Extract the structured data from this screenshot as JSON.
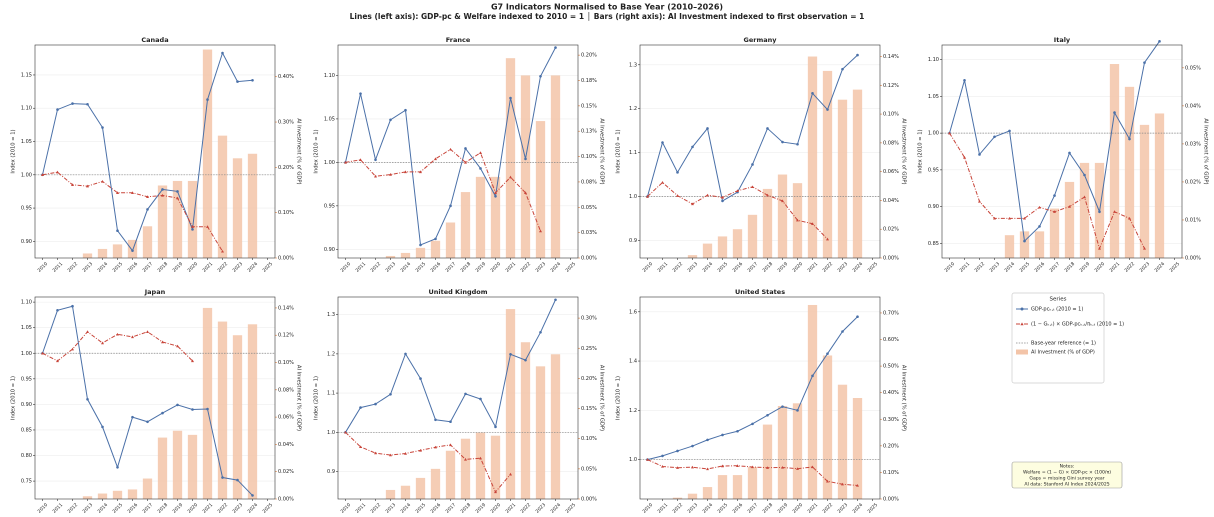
{
  "title": "G7 Indicators Normalised to Base Year (2010–2026)",
  "subtitle": "Lines (left axis): GDP-pc & Welfare indexed to 2010 = 1  │  Bars (right axis): AI Investment indexed to first observation = 1",
  "legend": {
    "title": "Series",
    "entries": [
      {
        "name": "GDP-pcₖ,ₜ (2010 = 1)",
        "color": "#4a70a8"
      },
      {
        "name": "(1 − Gₖ,ₜ) × GDP-pcₖ,ₜ/πₖ,ₜ (2010 = 1)",
        "color": "#c8453a"
      },
      {
        "name": "Base-year reference (= 1)",
        "color": "#888888"
      },
      {
        "name": "AI Investment (% of GDP)",
        "color": "#f3c4a8"
      }
    ]
  },
  "notes": [
    "Notes:",
    "Welfare = (1 − G) × GDP-pc × (100/π)",
    "Gaps = missing Gini survey year",
    "AI data: Stanford AI Index 2024/2025"
  ],
  "chart_data": [
    {
      "type": "combo",
      "title": "Canada",
      "ylabel": "Index (2010 = 1)",
      "y2label": "AI Investment (% of GDP)",
      "reference": 1,
      "x": [
        2010,
        2011,
        2012,
        2013,
        2014,
        2015,
        2016,
        2017,
        2018,
        2019,
        2020,
        2021,
        2022,
        2023,
        2024
      ],
      "xlim": [
        2009.5,
        2025.5
      ],
      "xticks": [
        2010,
        2011,
        2012,
        2013,
        2014,
        2015,
        2016,
        2017,
        2018,
        2019,
        2020,
        2021,
        2022,
        2023,
        2024,
        2025
      ],
      "ylim": [
        0.875,
        1.195
      ],
      "yticks": [
        {
          "value": 0.9,
          "label": "0.90"
        },
        {
          "value": 0.95,
          "label": "0.95"
        },
        {
          "value": 1,
          "label": "1.00"
        },
        {
          "value": 1.05,
          "label": "1.05"
        },
        {
          "value": 1.1,
          "label": "1.10"
        },
        {
          "value": 1.15,
          "label": "1.15"
        }
      ],
      "y2lim": [
        0,
        0.47
      ],
      "y2ticks": [
        {
          "value": 0,
          "label": "0.00%"
        },
        {
          "value": 0.1,
          "label": "0.10%"
        },
        {
          "value": 0.2,
          "label": "0.20%"
        },
        {
          "value": 0.3,
          "label": "0.30%"
        },
        {
          "value": 0.4,
          "label": "0.40%"
        }
      ],
      "series": [
        {
          "values": [
            1.0,
            1.098,
            1.107,
            1.106,
            1.071,
            0.916,
            0.886,
            0.948,
            0.978,
            0.975,
            0.918,
            1.113,
            1.183,
            1.14,
            1.142
          ]
        },
        {
          "values": [
            1.0,
            1.004,
            0.985,
            0.983,
            0.99,
            0.973,
            0.973,
            0.967,
            0.969,
            0.965,
            0.922,
            0.922,
            0.885,
            null,
            null
          ]
        },
        {
          "axis": "y2",
          "values": [
            null,
            null,
            null,
            0.01,
            0.02,
            0.03,
            0.04,
            0.07,
            0.16,
            0.17,
            0.17,
            0.46,
            0.27,
            0.22,
            0.23
          ]
        }
      ]
    },
    {
      "type": "combo",
      "title": "France",
      "ylabel": "Index (2010 = 1)",
      "y2label": "AI Investment (% of GDP)",
      "reference": 1,
      "x": [
        2010,
        2011,
        2012,
        2013,
        2014,
        2015,
        2016,
        2017,
        2018,
        2019,
        2020,
        2021,
        2022,
        2023,
        2024
      ],
      "xlim": [
        2009.5,
        2025.5
      ],
      "xticks": [
        2010,
        2011,
        2012,
        2013,
        2014,
        2015,
        2016,
        2017,
        2018,
        2019,
        2020,
        2021,
        2022,
        2023,
        2024,
        2025
      ],
      "ylim": [
        0.89,
        1.135
      ],
      "yticks": [
        {
          "value": 0.9,
          "label": "0.90"
        },
        {
          "value": 0.95,
          "label": "0.95"
        },
        {
          "value": 1,
          "label": "1.00"
        },
        {
          "value": 1.05,
          "label": "1.05"
        },
        {
          "value": 1.1,
          "label": "1.10"
        }
      ],
      "y2lim": [
        0,
        0.21
      ],
      "y2ticks": [
        {
          "value": 0,
          "label": "0.00%"
        },
        {
          "value": 0.025,
          "label": "0.03%"
        },
        {
          "value": 0.05,
          "label": "0.05%"
        },
        {
          "value": 0.075,
          "label": "0.08%"
        },
        {
          "value": 0.1,
          "label": "0.10%"
        },
        {
          "value": 0.125,
          "label": "0.13%"
        },
        {
          "value": 0.15,
          "label": "0.15%"
        },
        {
          "value": 0.175,
          "label": "0.18%"
        },
        {
          "value": 0.2,
          "label": "0.20%"
        }
      ],
      "series": [
        {
          "values": [
            1.0,
            1.079,
            1.003,
            1.049,
            1.06,
            0.905,
            0.912,
            0.95,
            1.016,
            0.993,
            0.961,
            1.074,
            1.004,
            1.099,
            1.132
          ]
        },
        {
          "values": [
            1.0,
            1.003,
            0.984,
            0.986,
            0.989,
            0.989,
            1.004,
            1.015,
            1.0,
            1.011,
            0.965,
            0.983,
            0.965,
            0.921,
            null
          ]
        },
        {
          "axis": "y2",
          "values": [
            null,
            null,
            null,
            0.002,
            0.005,
            0.01,
            0.017,
            0.035,
            0.065,
            0.08,
            0.08,
            0.197,
            0.18,
            0.135,
            0.18
          ]
        }
      ]
    },
    {
      "type": "combo",
      "title": "Germany",
      "ylabel": "Index (2010 = 1)",
      "y2label": "AI Investment (% of GDP)",
      "reference": 1,
      "x": [
        2010,
        2011,
        2012,
        2013,
        2014,
        2015,
        2016,
        2017,
        2018,
        2019,
        2020,
        2021,
        2022,
        2023,
        2024
      ],
      "xlim": [
        2009.5,
        2025.5
      ],
      "xticks": [
        2010,
        2011,
        2012,
        2013,
        2014,
        2015,
        2016,
        2017,
        2018,
        2019,
        2020,
        2021,
        2022,
        2023,
        2024,
        2025
      ],
      "ylim": [
        0.86,
        1.345
      ],
      "yticks": [
        0.9,
        {
          "value": 1,
          "label": "1.0"
        },
        1.1,
        1.2,
        1.3
      ],
      "y2lim": [
        0,
        0.148
      ],
      "y2ticks": [
        {
          "value": 0,
          "label": "0.00%"
        },
        {
          "value": 0.02,
          "label": "0.02%"
        },
        {
          "value": 0.04,
          "label": "0.04%"
        },
        {
          "value": 0.06,
          "label": "0.06%"
        },
        {
          "value": 0.08,
          "label": "0.08%"
        },
        {
          "value": 0.1,
          "label": "0.10%"
        },
        {
          "value": 0.12,
          "label": "0.12%"
        },
        {
          "value": 0.14,
          "label": "0.14%"
        }
      ],
      "series": [
        {
          "values": [
            1.0,
            1.123,
            1.055,
            1.113,
            1.155,
            0.99,
            1.01,
            1.073,
            1.155,
            1.124,
            1.119,
            1.235,
            1.198,
            1.29,
            1.322
          ]
        },
        {
          "values": [
            1.0,
            1.032,
            1.002,
            0.983,
            1.003,
            0.998,
            1.013,
            1.022,
            1.003,
            0.99,
            0.946,
            0.938,
            0.903,
            null,
            null
          ]
        },
        {
          "axis": "y2",
          "values": [
            null,
            null,
            null,
            0.002,
            0.01,
            0.015,
            0.02,
            0.03,
            0.048,
            0.058,
            0.052,
            0.14,
            0.13,
            0.11,
            0.117
          ]
        }
      ]
    },
    {
      "type": "combo",
      "title": "Italy",
      "ylabel": "Index (2010 = 1)",
      "y2label": "AI Investment (% of GDP)",
      "reference": 1,
      "x": [
        2010,
        2011,
        2012,
        2013,
        2014,
        2015,
        2016,
        2017,
        2018,
        2019,
        2020,
        2021,
        2022,
        2023,
        2024
      ],
      "xlim": [
        2009.5,
        2025.5
      ],
      "xticks": [
        2010,
        2011,
        2012,
        2013,
        2014,
        2015,
        2016,
        2017,
        2018,
        2019,
        2020,
        2021,
        2022,
        2023,
        2024,
        2025
      ],
      "ylim": [
        0.83,
        1.12
      ],
      "yticks": [
        {
          "value": 0.85,
          "label": "0.85"
        },
        {
          "value": 0.9,
          "label": "0.90"
        },
        {
          "value": 0.95,
          "label": "0.95"
        },
        {
          "value": 1,
          "label": "1.00"
        },
        {
          "value": 1.05,
          "label": "1.05"
        },
        {
          "value": 1.1,
          "label": "1.10"
        }
      ],
      "y2lim": [
        0,
        0.056
      ],
      "y2ticks": [
        {
          "value": 0,
          "label": "0.00%"
        },
        {
          "value": 0.01,
          "label": "0.01%"
        },
        {
          "value": 0.02,
          "label": "0.02%"
        },
        {
          "value": 0.03,
          "label": "0.03%"
        },
        {
          "value": 0.04,
          "label": "0.04%"
        },
        {
          "value": 0.05,
          "label": "0.05%"
        }
      ],
      "series": [
        {
          "values": [
            1.0,
            1.072,
            0.971,
            0.995,
            1.003,
            0.853,
            0.873,
            0.915,
            0.973,
            0.943,
            0.893,
            1.028,
            0.992,
            1.096,
            1.125
          ]
        },
        {
          "values": [
            1.0,
            0.967,
            0.907,
            0.884,
            0.884,
            0.884,
            0.899,
            0.893,
            0.9,
            0.913,
            0.843,
            0.893,
            0.884,
            0.843,
            null
          ]
        },
        {
          "axis": "y2",
          "values": [
            null,
            null,
            null,
            null,
            0.006,
            0.007,
            0.007,
            0.013,
            0.02,
            0.025,
            0.025,
            0.051,
            0.045,
            0.035,
            0.038
          ]
        }
      ]
    },
    {
      "type": "combo",
      "title": "Japan",
      "ylabel": "Index (2010 = 1)",
      "y2label": "AI Investment (% of GDP)",
      "reference": 1,
      "x": [
        2010,
        2011,
        2012,
        2013,
        2014,
        2015,
        2016,
        2017,
        2018,
        2019,
        2020,
        2021,
        2022,
        2023,
        2024
      ],
      "xlim": [
        2009.5,
        2025.5
      ],
      "xticks": [
        2010,
        2011,
        2012,
        2013,
        2014,
        2015,
        2016,
        2017,
        2018,
        2019,
        2020,
        2021,
        2022,
        2023,
        2024,
        2025
      ],
      "ylim": [
        0.715,
        1.11
      ],
      "yticks": [
        {
          "value": 0.75,
          "label": "0.75"
        },
        {
          "value": 0.8,
          "label": "0.80"
        },
        {
          "value": 0.85,
          "label": "0.85"
        },
        {
          "value": 0.9,
          "label": "0.90"
        },
        {
          "value": 0.95,
          "label": "0.95"
        },
        {
          "value": 1,
          "label": "1.00"
        },
        {
          "value": 1.05,
          "label": "1.05"
        },
        {
          "value": 1.1,
          "label": "1.10"
        }
      ],
      "y2lim": [
        0,
        0.148
      ],
      "y2ticks": [
        {
          "value": 0,
          "label": "0.00%"
        },
        {
          "value": 0.02,
          "label": "0.02%"
        },
        {
          "value": 0.04,
          "label": "0.04%"
        },
        {
          "value": 0.06,
          "label": "0.06%"
        },
        {
          "value": 0.08,
          "label": "0.08%"
        },
        {
          "value": 0.1,
          "label": "0.10%"
        },
        {
          "value": 0.12,
          "label": "0.12%"
        },
        {
          "value": 0.14,
          "label": "0.14%"
        }
      ],
      "series": [
        {
          "values": [
            1.0,
            1.084,
            1.092,
            0.91,
            0.856,
            0.777,
            0.875,
            0.866,
            0.883,
            0.899,
            0.89,
            0.891,
            0.757,
            0.752,
            0.722
          ]
        },
        {
          "values": [
            1.0,
            0.985,
            1.008,
            1.042,
            1.02,
            1.037,
            1.032,
            1.042,
            1.022,
            1.014,
            0.985,
            null,
            null,
            null,
            null
          ]
        },
        {
          "axis": "y2",
          "values": [
            null,
            null,
            null,
            0.002,
            0.004,
            0.006,
            0.007,
            0.015,
            0.045,
            0.05,
            0.047,
            0.14,
            0.13,
            0.12,
            0.128
          ]
        }
      ]
    },
    {
      "type": "combo",
      "title": "United Kingdom",
      "ylabel": "Index (2010 = 1)",
      "y2label": "AI Investment (% of GDP)",
      "reference": 1,
      "x": [
        2010,
        2011,
        2012,
        2013,
        2014,
        2015,
        2016,
        2017,
        2018,
        2019,
        2020,
        2021,
        2022,
        2023,
        2024
      ],
      "xlim": [
        2009.5,
        2025.5
      ],
      "xticks": [
        2010,
        2011,
        2012,
        2013,
        2014,
        2015,
        2016,
        2017,
        2018,
        2019,
        2020,
        2021,
        2022,
        2023,
        2024,
        2025
      ],
      "ylim": [
        0.83,
        1.345
      ],
      "yticks": [
        0.9,
        {
          "value": 1,
          "label": "1.0"
        },
        1.1,
        1.2,
        1.3
      ],
      "y2lim": [
        0,
        0.335
      ],
      "y2ticks": [
        {
          "value": 0,
          "label": "0.00%"
        },
        {
          "value": 0.05,
          "label": "0.05%"
        },
        {
          "value": 0.1,
          "label": "0.10%"
        },
        {
          "value": 0.15,
          "label": "0.15%"
        },
        {
          "value": 0.2,
          "label": "0.20%"
        },
        {
          "value": 0.25,
          "label": "0.25%"
        },
        {
          "value": 0.3,
          "label": "0.30%"
        }
      ],
      "series": [
        {
          "values": [
            1.0,
            1.063,
            1.072,
            1.097,
            1.2,
            1.137,
            1.032,
            1.027,
            1.098,
            1.085,
            1.014,
            1.199,
            1.184,
            1.255,
            1.338
          ]
        },
        {
          "values": [
            1.0,
            0.963,
            0.947,
            0.942,
            0.946,
            0.954,
            0.962,
            0.968,
            0.931,
            0.934,
            0.848,
            0.893,
            null,
            null,
            null
          ]
        },
        {
          "axis": "y2",
          "values": [
            null,
            null,
            null,
            0.015,
            0.022,
            0.035,
            0.05,
            0.08,
            0.1,
            0.11,
            0.105,
            0.315,
            0.26,
            0.22,
            0.24
          ]
        }
      ]
    },
    {
      "type": "combo",
      "title": "United States",
      "ylabel": "Index (2010 = 1)",
      "y2label": "AI Investment (% of GDP)",
      "reference": 1,
      "x": [
        2010,
        2011,
        2012,
        2013,
        2014,
        2015,
        2016,
        2017,
        2018,
        2019,
        2020,
        2021,
        2022,
        2023,
        2024
      ],
      "xlim": [
        2009.5,
        2025.5
      ],
      "xticks": [
        2010,
        2011,
        2012,
        2013,
        2014,
        2015,
        2016,
        2017,
        2018,
        2019,
        2020,
        2021,
        2022,
        2023,
        2024,
        2025
      ],
      "ylim": [
        0.84,
        1.66
      ],
      "yticks": [
        {
          "value": 1,
          "label": "1.0"
        },
        1.2,
        1.4,
        1.6
      ],
      "y2lim": [
        0,
        0.76
      ],
      "y2ticks": [
        {
          "value": 0,
          "label": "0.00%"
        },
        {
          "value": 0.1,
          "label": "0.10%"
        },
        {
          "value": 0.2,
          "label": "0.20%"
        },
        {
          "value": 0.3,
          "label": "0.30%"
        },
        {
          "value": 0.4,
          "label": "0.40%"
        },
        {
          "value": 0.5,
          "label": "0.50%"
        },
        {
          "value": 0.6,
          "label": "0.60%"
        },
        {
          "value": 0.7,
          "label": "0.70%"
        }
      ],
      "series": [
        {
          "values": [
            1.0,
            1.015,
            1.035,
            1.055,
            1.08,
            1.1,
            1.115,
            1.145,
            1.18,
            1.215,
            1.2,
            1.34,
            1.43,
            1.52,
            1.58
          ]
        },
        {
          "values": [
            1.0,
            0.972,
            0.967,
            0.969,
            0.962,
            0.974,
            0.975,
            0.97,
            0.967,
            0.968,
            0.963,
            0.97,
            0.912,
            0.9,
            0.895
          ]
        },
        {
          "axis": "y2",
          "values": [
            null,
            null,
            0.005,
            0.02,
            0.045,
            0.09,
            0.09,
            0.12,
            0.28,
            0.35,
            0.36,
            0.73,
            0.54,
            0.43,
            0.38
          ]
        }
      ]
    }
  ]
}
